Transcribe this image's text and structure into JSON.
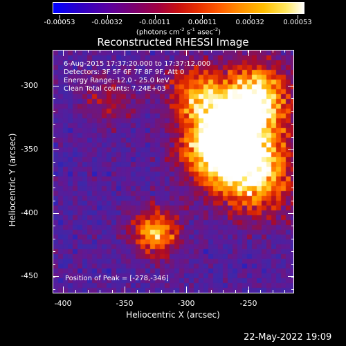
{
  "colorbar": {
    "tick_labels": [
      "-0.00053",
      "-0.00032",
      "-0.00011",
      "0.00011",
      "0.00032",
      "0.00053"
    ],
    "units_base": "(photons cm",
    "units_exp1": "-2",
    "units_mid1": " s",
    "units_exp2": "-1",
    "units_mid2": " asec",
    "units_exp3": "-2",
    "units_end": ")"
  },
  "plot": {
    "title": "Reconstructed RHESSI Image",
    "info_lines": [
      "6-Aug-2015 17:37:20.000 to 17:37:12.000",
      "Detectors: 3F 5F 6F 7F 8F 9F, Att 0",
      "Energy Range: 12.0 - 25.0 keV",
      "Clean     Total counts: 7.24E+03"
    ],
    "peak_text": "Position of Peak = [-278,-346]",
    "x_tick_labels": [
      "-400",
      "-350",
      "-300",
      "-250"
    ],
    "y_tick_labels": [
      "-300",
      "-350",
      "-400",
      "-450"
    ],
    "x_title": "Heliocentric X (arcsec)",
    "y_title": "Heliocentric Y (arcsec)"
  },
  "chart_data": {
    "type": "heatmap",
    "title": "Reconstructed RHESSI Image",
    "xlabel": "Heliocentric X (arcsec)",
    "ylabel": "Heliocentric Y (arcsec)",
    "xlim": [
      -413,
      -218
    ],
    "ylim": [
      -463,
      -267
    ],
    "color_range": [
      -0.00053,
      0.00053
    ],
    "colormap": "blue-purple-red-yellow-white",
    "peak": [
      -278,
      -346
    ],
    "sources": [
      {
        "x": -278,
        "y": -346,
        "sigma": 22,
        "amp": 1.0
      },
      {
        "x": -262,
        "y": -325,
        "sigma": 26,
        "amp": 0.75
      },
      {
        "x": -247,
        "y": -372,
        "sigma": 22,
        "amp": 0.7
      },
      {
        "x": -330,
        "y": -413,
        "sigma": 14,
        "amp": 0.85
      },
      {
        "x": -247,
        "y": -300,
        "sigma": 18,
        "amp": 0.65
      },
      {
        "x": -300,
        "y": -300,
        "sigma": 16,
        "amp": 0.55
      },
      {
        "x": -368,
        "y": -305,
        "sigma": 16,
        "amp": 0.35
      }
    ]
  },
  "footer": {
    "timestamp": "22-May-2022 19:09"
  }
}
